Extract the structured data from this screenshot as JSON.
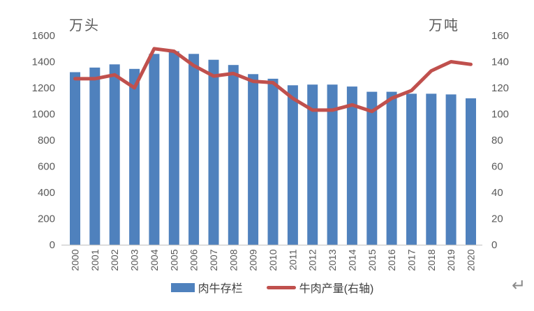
{
  "page": {
    "paragraph_mark": "↵"
  },
  "chart_data": {
    "type": "bar",
    "subtype": "bar-line-combo",
    "title": "",
    "background": "#ffffff",
    "grid": false,
    "legend_position": "bottom",
    "categories": [
      "2000",
      "2001",
      "2002",
      "2003",
      "2004",
      "2005",
      "2006",
      "2007",
      "2008",
      "2009",
      "2010",
      "2011",
      "2012",
      "2013",
      "2014",
      "2015",
      "2016",
      "2017",
      "2018",
      "2019",
      "2020"
    ],
    "left_axis": {
      "title": "万头",
      "min": 0,
      "max": 1600,
      "step": 200,
      "ticks": [
        "0",
        "200",
        "400",
        "600",
        "800",
        "1000",
        "1200",
        "1400",
        "1600"
      ]
    },
    "right_axis": {
      "title": "万吨",
      "min": 0,
      "max": 160,
      "step": 20,
      "ticks": [
        "0",
        "20",
        "40",
        "60",
        "80",
        "100",
        "120",
        "140",
        "160"
      ]
    },
    "series": [
      {
        "name": "肉牛存栏",
        "type": "bar",
        "axis": "left",
        "color": "#4F81BD",
        "values": [
          1320,
          1355,
          1380,
          1345,
          1460,
          1480,
          1460,
          1415,
          1375,
          1305,
          1270,
          1220,
          1225,
          1225,
          1210,
          1170,
          1170,
          1155,
          1155,
          1150,
          1120
        ]
      },
      {
        "name": "牛肉产量(右轴)",
        "type": "line",
        "axis": "right",
        "color": "#C0504D",
        "values": [
          127,
          127,
          130,
          120,
          150,
          148,
          137,
          129,
          131,
          125,
          124,
          112,
          103,
          103,
          107,
          102,
          112,
          118,
          133,
          140,
          138
        ]
      }
    ],
    "axis_line_color": "#C9C9C9",
    "tick_label_color": "#595959"
  }
}
